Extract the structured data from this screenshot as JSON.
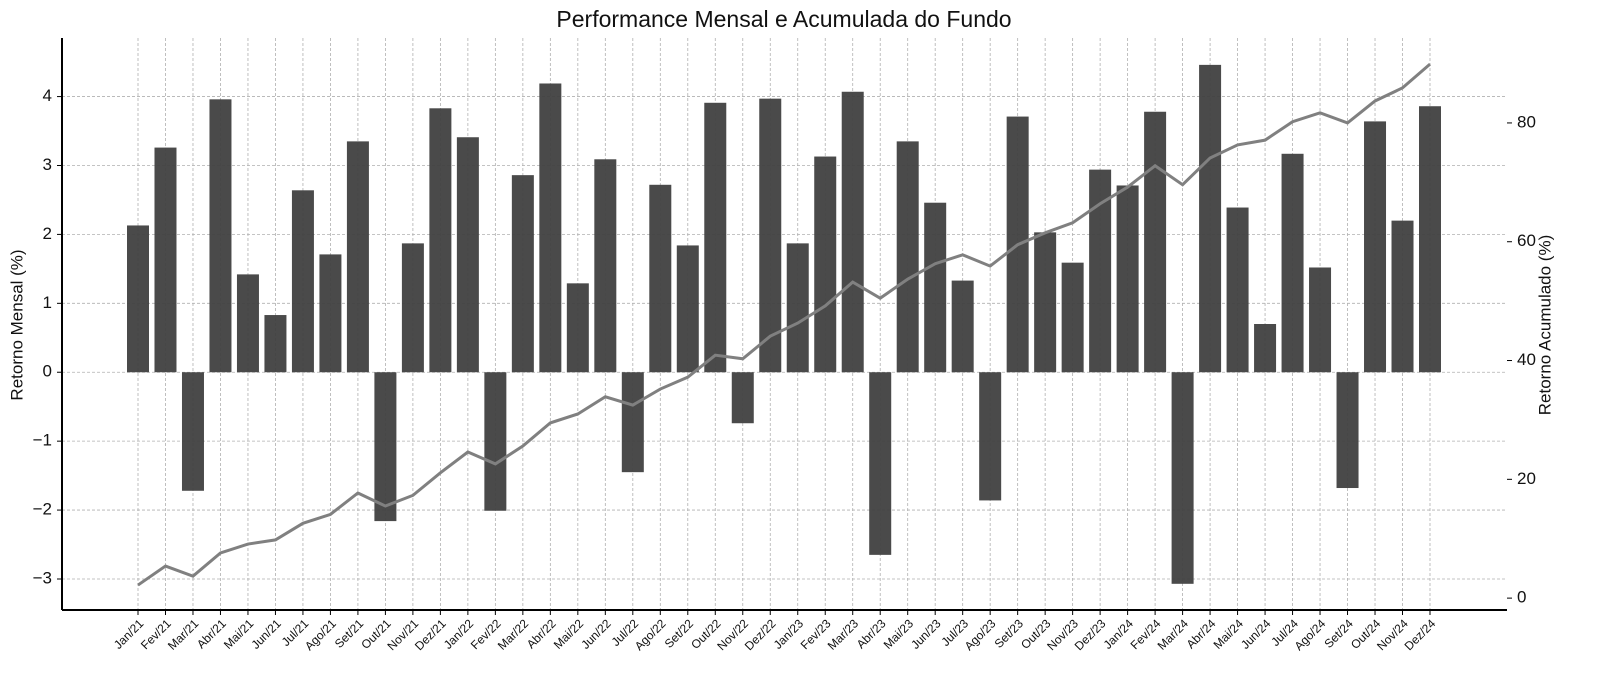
{
  "chart_data": {
    "type": "bar",
    "title": "Performance Mensal e Acumulada do Fundo",
    "y_label": "Retorno Mensal (%)",
    "y2_label": "Retorno Acumulado (%)",
    "categories": [
      "Jan/21",
      "Fev/21",
      "Mar/21",
      "Abr/21",
      "Mai/21",
      "Jun/21",
      "Jul/21",
      "Ago/21",
      "Set/21",
      "Out/21",
      "Nov/21",
      "Dez/21",
      "Jan/22",
      "Fev/22",
      "Mar/22",
      "Abr/22",
      "Mai/22",
      "Jun/22",
      "Jul/22",
      "Ago/22",
      "Set/22",
      "Out/22",
      "Nov/22",
      "Dez/22",
      "Jan/23",
      "Fev/23",
      "Mar/23",
      "Abr/23",
      "Mai/23",
      "Jun/23",
      "Jul/23",
      "Ago/23",
      "Set/23",
      "Out/23",
      "Nov/23",
      "Dez/23",
      "Jan/24",
      "Fev/24",
      "Mar/24",
      "Abr/24",
      "Mai/24",
      "Jun/24",
      "Jul/24",
      "Ago/24",
      "Set/24",
      "Out/24",
      "Nov/24",
      "Dez/24"
    ],
    "series": [
      {
        "type": "bar",
        "color": "#404040",
        "values": [
          2.13,
          3.26,
          -1.72,
          3.96,
          1.42,
          0.83,
          2.64,
          1.71,
          3.35,
          -2.16,
          1.87,
          3.83,
          3.41,
          -2.01,
          2.86,
          4.19,
          1.29,
          3.09,
          -1.45,
          2.72,
          1.84,
          3.91,
          -0.74,
          3.97,
          1.87,
          3.13,
          4.07,
          -2.65,
          3.35,
          2.46,
          1.33,
          -1.86,
          3.71,
          2.03,
          1.59,
          2.94,
          2.71,
          3.78,
          -3.07,
          4.46,
          2.39,
          0.7,
          3.17,
          1.52,
          -1.68,
          3.64,
          2.2,
          3.86
        ]
      },
      {
        "type": "line",
        "axis": "y2",
        "color": "#808080",
        "values": [
          2.2,
          5.4,
          3.7,
          7.6,
          9.1,
          9.8,
          12.6,
          14.1,
          17.7,
          15.5,
          17.3,
          21.1,
          24.6,
          22.6,
          25.6,
          29.5,
          31.0,
          33.9,
          32.5,
          35.2,
          37.2,
          40.9,
          40.3,
          44.1,
          46.3,
          49.2,
          53.2,
          50.5,
          53.7,
          56.3,
          57.8,
          55.9,
          59.5,
          61.5,
          63.2,
          66.4,
          69.2,
          72.8,
          69.6,
          74.1,
          76.3,
          77.1,
          80.2,
          81.7,
          80.0,
          83.7,
          85.9,
          89.9
        ]
      }
    ],
    "ylim": [
      -3.45,
      4.85
    ],
    "yticks": [
      {
        "value": -3,
        "label": "−3"
      },
      {
        "value": -2,
        "label": "−2"
      },
      {
        "value": -1,
        "label": "−1"
      },
      0,
      1,
      2,
      3,
      4
    ],
    "y2lim": [
      -2.0,
      94.3
    ],
    "y2ticks": [
      0,
      20,
      40,
      60,
      80
    ],
    "grid": true
  }
}
